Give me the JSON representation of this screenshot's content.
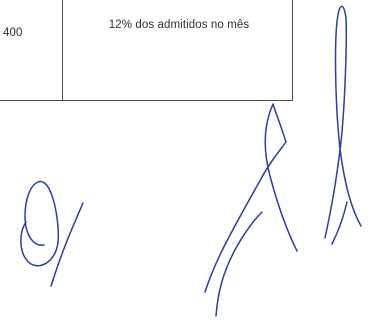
{
  "table": {
    "rows": [
      {
        "cells": [
          {
            "text": "400"
          },
          {
            "text": "12% dos admitidos no mês"
          }
        ]
      }
    ]
  },
  "colors": {
    "ink": "#2f2f2f",
    "table_border": "#4a4a4a",
    "signature_ink": "#2b3f9e"
  },
  "signature": {
    "count": 2
  }
}
